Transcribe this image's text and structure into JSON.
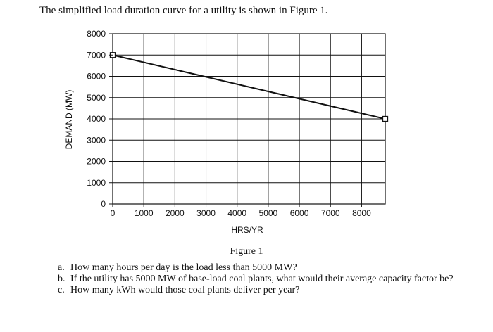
{
  "intro": "The simplified load duration curve for a utility is shown in Figure 1.",
  "caption": "Figure 1",
  "questions": [
    {
      "letter": "a.",
      "text": "How many hours per day is the load less than 5000 MW?"
    },
    {
      "letter": "b.",
      "text": "If the utility has 5000 MW of base-load coal plants, what would their average capacity factor be?"
    },
    {
      "letter": "c.",
      "text": "How many kWh would those coal plants deliver per year?"
    }
  ],
  "chart_data": {
    "type": "line",
    "title": "",
    "xlabel": "HRS/YR",
    "ylabel": "DEMAND (MW)",
    "xlim": [
      0,
      8760
    ],
    "ylim": [
      0,
      8000
    ],
    "x_ticks": [
      0,
      1000,
      2000,
      3000,
      4000,
      5000,
      6000,
      7000,
      8000
    ],
    "y_ticks": [
      0,
      1000,
      2000,
      3000,
      4000,
      5000,
      6000,
      7000,
      8000
    ],
    "grid": true,
    "series": [
      {
        "x": [
          0,
          8760
        ],
        "y": [
          7000,
          4000
        ],
        "color": "#111111",
        "marker": "square"
      }
    ]
  }
}
